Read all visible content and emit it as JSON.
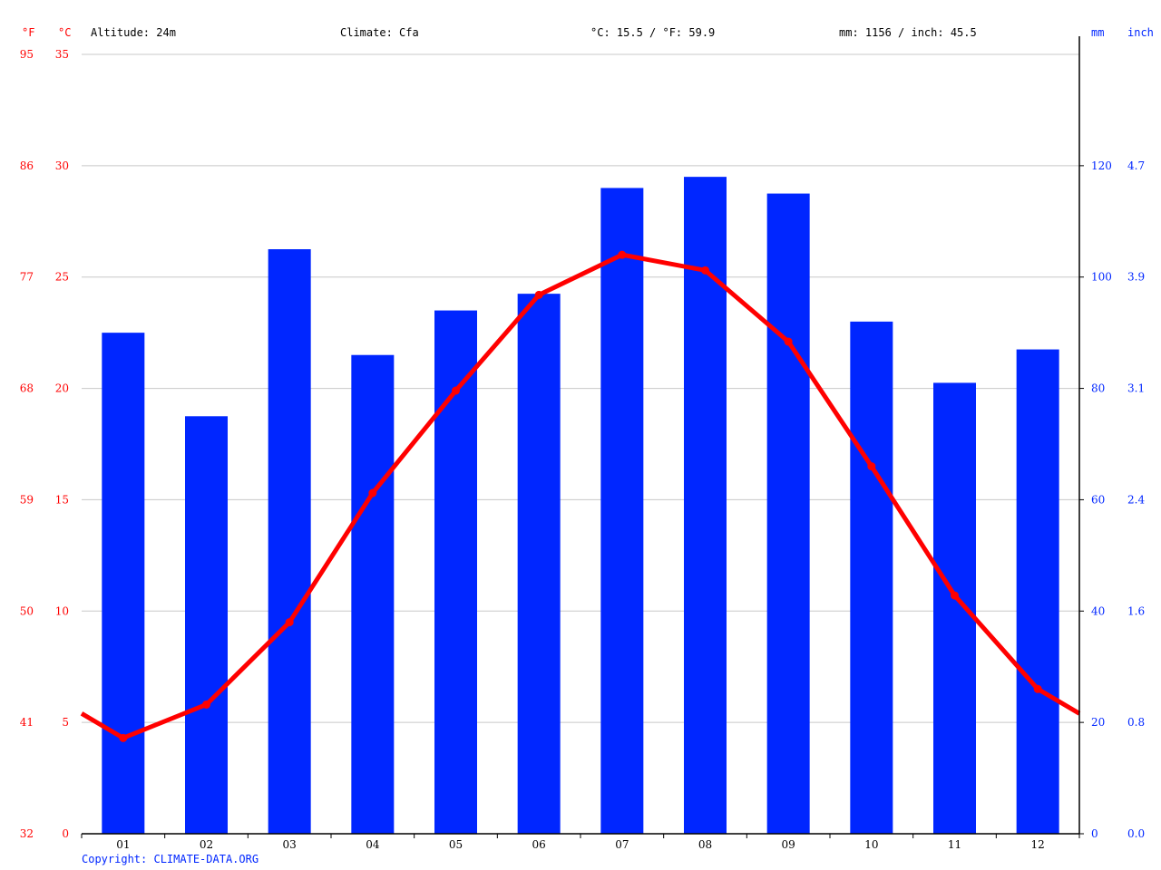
{
  "header": {
    "unit_f": "°F",
    "unit_c": "°C",
    "altitude": "Altitude: 24m",
    "climate": "Climate: Cfa",
    "temp_mean": "°C: 15.5 / °F: 59.9",
    "precip_total": "mm: 1156 / inch: 45.5",
    "unit_mm": "mm",
    "unit_inch": "inch"
  },
  "copyright": "Copyright: CLIMATE-DATA.ORG",
  "colors": {
    "temperature": "#ff0000",
    "precipitation": "#0026ff",
    "grid": "#c8c8c8",
    "temp_axis": "#ff0000",
    "precip_axis": "#0026ff"
  },
  "chart_data": {
    "type": "bar+line",
    "categories": [
      "01",
      "02",
      "03",
      "04",
      "05",
      "06",
      "07",
      "08",
      "09",
      "10",
      "11",
      "12"
    ],
    "series": [
      {
        "type": "bar",
        "unit": "mm",
        "values": [
          90,
          75,
          105,
          86,
          94,
          97,
          116,
          118,
          115,
          92,
          81,
          87
        ]
      },
      {
        "type": "line",
        "unit": "°C",
        "values": [
          4.3,
          5.8,
          9.5,
          15.3,
          19.9,
          24.2,
          26.0,
          25.3,
          22.1,
          16.5,
          10.7,
          6.5
        ]
      }
    ],
    "left_axis_c": {
      "ylim": [
        0,
        35
      ],
      "ticks": [
        "0",
        "5",
        "10",
        "15",
        "20",
        "25",
        "30",
        "35"
      ]
    },
    "left_axis_f": {
      "ticks": [
        "32",
        "41",
        "50",
        "59",
        "68",
        "77",
        "86",
        "95"
      ]
    },
    "right_axis_mm": {
      "ylim": [
        0,
        140
      ],
      "ticks": [
        "0",
        "20",
        "40",
        "60",
        "80",
        "100",
        "120"
      ]
    },
    "right_axis_inch": {
      "ticks": [
        "0.0",
        "0.8",
        "1.6",
        "2.4",
        "3.1",
        "3.9",
        "4.7"
      ]
    },
    "grid": true
  }
}
